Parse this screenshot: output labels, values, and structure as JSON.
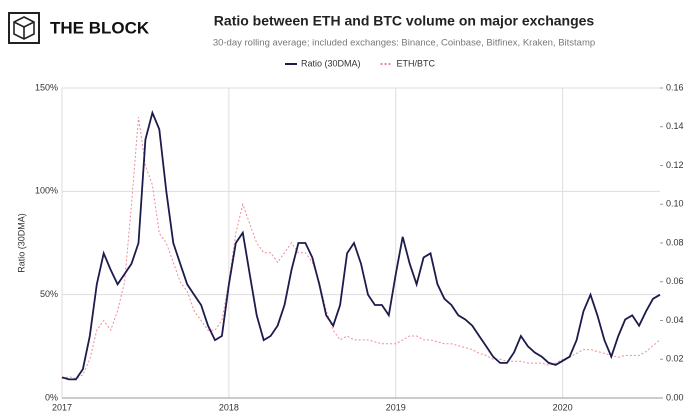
{
  "logo": {
    "text": "THE BLOCK"
  },
  "chart_data": {
    "type": "line",
    "title": "Ratio between ETH and BTC volume on major exchanges",
    "subtitle": "30-day rolling average; included exchanges: Binance, Coinbase, Bitfinex, Kraken, Bitstamp",
    "y_label": "Ratio (30DMA)",
    "legend": "top",
    "grid": true,
    "categories": [
      "2017",
      null,
      null,
      null,
      null,
      null,
      null,
      null,
      null,
      null,
      null,
      null,
      null,
      null,
      null,
      null,
      null,
      null,
      null,
      null,
      null,
      null,
      null,
      null,
      "2018",
      null,
      null,
      null,
      null,
      null,
      null,
      null,
      null,
      null,
      null,
      null,
      null,
      null,
      null,
      null,
      null,
      null,
      null,
      null,
      null,
      null,
      null,
      null,
      "2019",
      null,
      null,
      null,
      null,
      null,
      null,
      null,
      null,
      null,
      null,
      null,
      null,
      null,
      null,
      null,
      null,
      null,
      null,
      null,
      null,
      null,
      null,
      null,
      "2020",
      null,
      null,
      null,
      null,
      null,
      null,
      null,
      null,
      null,
      null,
      null,
      null,
      null,
      null
    ],
    "ylim": [
      0,
      150
    ],
    "yticks": [
      {
        "value": 0,
        "label": "0%"
      },
      {
        "value": 50,
        "label": "50%"
      },
      {
        "value": 100,
        "label": "100%"
      },
      {
        "value": 150,
        "label": "150%"
      }
    ],
    "y2lim": [
      0,
      0.16
    ],
    "y2ticks": [
      {
        "value": 0,
        "label": "0.00"
      },
      {
        "value": 0.02,
        "label": "0.02"
      },
      {
        "value": 0.04,
        "label": "0.04"
      },
      {
        "value": 0.06,
        "label": "0.06"
      },
      {
        "value": 0.08,
        "label": "0.08"
      },
      {
        "value": 0.1,
        "label": "0.10"
      },
      {
        "value": 0.12,
        "label": "0.12"
      },
      {
        "value": 0.14,
        "label": "0.14"
      },
      {
        "value": 0.16,
        "label": "0.16"
      }
    ],
    "series": [
      {
        "name": "Ratio (30DMA)",
        "color": "#1c1b4d",
        "dashed": false,
        "values": [
          10,
          9,
          9,
          14,
          30,
          55,
          70,
          62,
          55,
          60,
          65,
          75,
          125,
          138,
          130,
          100,
          75,
          65,
          55,
          50,
          45,
          35,
          28,
          30,
          55,
          75,
          80,
          60,
          40,
          28,
          30,
          35,
          45,
          62,
          75,
          75,
          68,
          55,
          40,
          35,
          45,
          70,
          75,
          65,
          50,
          45,
          45,
          40,
          60,
          78,
          65,
          55,
          68,
          70,
          55,
          48,
          45,
          40,
          38,
          35,
          30,
          25,
          20,
          17,
          17,
          22,
          30,
          25,
          22,
          20,
          17,
          16,
          18,
          20,
          28,
          42,
          50,
          40,
          28,
          20,
          30,
          38,
          40,
          35,
          42,
          48,
          50
        ]
      },
      {
        "name": "ETH/BTC",
        "color": "#f08a9a",
        "dashed": true,
        "axis": "y2",
        "values": [
          0.01,
          0.011,
          0.01,
          0.012,
          0.02,
          0.035,
          0.04,
          0.035,
          0.045,
          0.06,
          0.1,
          0.145,
          0.12,
          0.11,
          0.085,
          0.08,
          0.07,
          0.06,
          0.055,
          0.045,
          0.04,
          0.035,
          0.035,
          0.04,
          0.06,
          0.085,
          0.1,
          0.09,
          0.08,
          0.075,
          0.075,
          0.07,
          0.075,
          0.08,
          0.075,
          0.075,
          0.07,
          0.06,
          0.045,
          0.035,
          0.03,
          0.032,
          0.03,
          0.03,
          0.03,
          0.029,
          0.028,
          0.028,
          0.028,
          0.03,
          0.032,
          0.032,
          0.03,
          0.03,
          0.029,
          0.028,
          0.028,
          0.027,
          0.026,
          0.025,
          0.023,
          0.022,
          0.02,
          0.02,
          0.019,
          0.019,
          0.019,
          0.018,
          0.018,
          0.018,
          0.017,
          0.018,
          0.02,
          0.021,
          0.023,
          0.025,
          0.025,
          0.024,
          0.023,
          0.022,
          0.021,
          0.022,
          0.022,
          0.022,
          0.024,
          0.027,
          0.03
        ]
      }
    ]
  }
}
